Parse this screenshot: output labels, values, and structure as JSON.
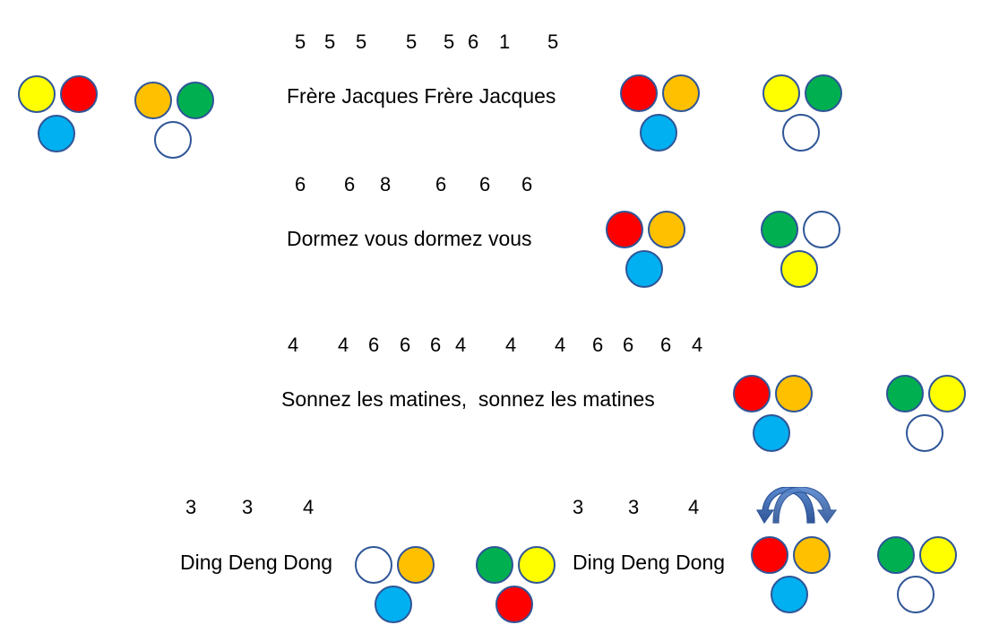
{
  "colors": {
    "yellow": "#ffff00",
    "red": "#ff0000",
    "blue": "#00b0f0",
    "orange": "#ffc000",
    "green": "#00b050",
    "white": "#ffffff",
    "outline": "#2f5597"
  },
  "lines": [
    {
      "notes": [
        "5",
        "5",
        "5",
        "5",
        "5",
        "6",
        "1",
        "5"
      ],
      "lyric": "Frère Jacques Frère Jacques"
    },
    {
      "notes": [
        "6",
        "6",
        "8",
        "6",
        "6",
        "6"
      ],
      "lyric": "Dormez vous dormez vous"
    },
    {
      "notes": [
        "4",
        "4",
        "6",
        "6",
        "6",
        "4",
        "4",
        "4",
        "6",
        "6",
        "6",
        "4"
      ],
      "lyric": "Sonnez les matines,  sonnez les matines"
    },
    {
      "notes_left": [
        "3",
        "3",
        "4"
      ],
      "notes_right": [
        "3",
        "3",
        "4"
      ],
      "lyric_left": "Ding Deng Dong",
      "lyric_right": "Ding Deng Dong"
    }
  ],
  "groups": [
    {
      "top_left": "yellow",
      "top_right": "red",
      "bottom": "blue"
    },
    {
      "top_left": "orange",
      "top_right": "green",
      "bottom": "white"
    },
    {
      "top_left": "red",
      "top_right": "orange",
      "bottom": "blue"
    },
    {
      "top_left": "yellow",
      "top_right": "green",
      "bottom": "white"
    },
    {
      "top_left": "red",
      "top_right": "orange",
      "bottom": "blue"
    },
    {
      "top_left": "green",
      "top_right": "white",
      "bottom": "yellow"
    },
    {
      "top_left": "red",
      "top_right": "orange",
      "bottom": "blue"
    },
    {
      "top_left": "green",
      "top_right": "yellow",
      "bottom": "white"
    },
    {
      "top_left": "white",
      "top_right": "orange",
      "bottom": "blue"
    },
    {
      "top_left": "green",
      "top_right": "yellow",
      "bottom": "red"
    },
    {
      "top_left": "red",
      "top_right": "orange",
      "bottom": "blue"
    },
    {
      "top_left": "green",
      "top_right": "yellow",
      "bottom": "white"
    }
  ],
  "rotate_arrows_icon": "curved-swap-arrows-icon"
}
